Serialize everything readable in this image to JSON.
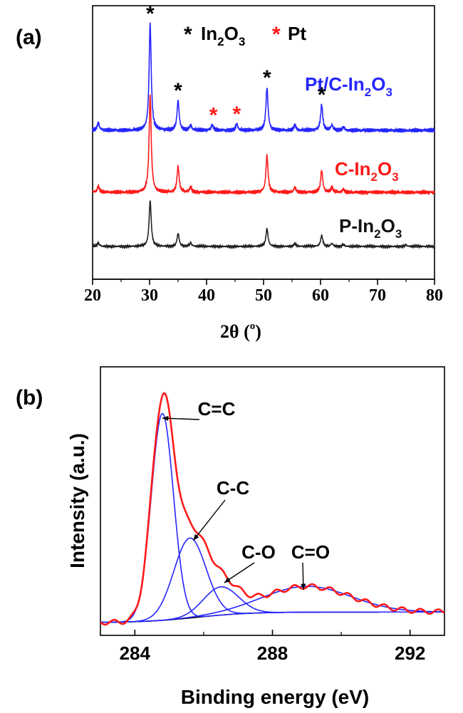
{
  "chart_data": [
    {
      "panel": "(a)",
      "type": "line",
      "xlabel": "2θ (°)",
      "xlabel_main": "2θ (",
      "xlabel_deg": "o",
      "xlabel_close": ")",
      "xlim": [
        20,
        80
      ],
      "xticks": [
        20,
        30,
        40,
        50,
        60,
        70,
        80
      ],
      "legend": [
        {
          "marker": "*",
          "color": "#000000",
          "label": "In",
          "sub": "2",
          "label2": "O",
          "sub2": "3"
        },
        {
          "marker": "*",
          "color": "#ff1a1a",
          "label": "Pt",
          "sub": "",
          "label2": "",
          "sub2": ""
        }
      ],
      "series": [
        {
          "name": "Pt/C-In2O3",
          "label": "Pt/C-In",
          "sub": "2",
          "label2": "O",
          "sub2": "3",
          "color": "#2626ff",
          "baseline": 0.0,
          "peaks": [
            {
              "x": 21.0,
              "h": 0.07
            },
            {
              "x": 30.1,
              "h": 1.0
            },
            {
              "x": 35.0,
              "h": 0.28
            },
            {
              "x": 37.2,
              "h": 0.05
            },
            {
              "x": 41.0,
              "h": 0.05
            },
            {
              "x": 45.3,
              "h": 0.06
            },
            {
              "x": 50.6,
              "h": 0.4
            },
            {
              "x": 55.5,
              "h": 0.05
            },
            {
              "x": 60.2,
              "h": 0.24
            },
            {
              "x": 62.0,
              "h": 0.05
            },
            {
              "x": 64.0,
              "h": 0.03
            }
          ],
          "markers": [
            {
              "x": 30.1,
              "color": "#000000"
            },
            {
              "x": 35.0,
              "color": "#000000"
            },
            {
              "x": 41.2,
              "color": "#ff1a1a"
            },
            {
              "x": 45.3,
              "color": "#ff1a1a"
            },
            {
              "x": 50.6,
              "color": "#000000"
            },
            {
              "x": 60.2,
              "color": "#000000"
            }
          ]
        },
        {
          "name": "C-In2O3",
          "label": "C-In",
          "sub": "2",
          "label2": "O",
          "sub2": "3",
          "color": "#ff1a1a",
          "baseline": 0.0,
          "peaks": [
            {
              "x": 21.0,
              "h": 0.06
            },
            {
              "x": 30.1,
              "h": 0.98
            },
            {
              "x": 35.0,
              "h": 0.26
            },
            {
              "x": 37.2,
              "h": 0.05
            },
            {
              "x": 50.6,
              "h": 0.37
            },
            {
              "x": 55.5,
              "h": 0.05
            },
            {
              "x": 60.2,
              "h": 0.22
            },
            {
              "x": 62.0,
              "h": 0.05
            },
            {
              "x": 64.0,
              "h": 0.03
            }
          ],
          "markers": []
        },
        {
          "name": "P-In2O3",
          "label": "P-In",
          "sub": "2",
          "label2": "O",
          "sub2": "3",
          "color": "#222222",
          "baseline": 0.0,
          "peaks": [
            {
              "x": 21.0,
              "h": 0.07
            },
            {
              "x": 30.1,
              "h": 0.92
            },
            {
              "x": 35.0,
              "h": 0.26
            },
            {
              "x": 37.2,
              "h": 0.07
            },
            {
              "x": 50.6,
              "h": 0.36
            },
            {
              "x": 55.5,
              "h": 0.06
            },
            {
              "x": 60.2,
              "h": 0.22
            },
            {
              "x": 62.0,
              "h": 0.06
            },
            {
              "x": 64.0,
              "h": 0.04
            },
            {
              "x": 75.0,
              "h": 0.03
            }
          ],
          "markers": []
        }
      ]
    },
    {
      "panel": "(b)",
      "type": "line",
      "xlabel": "Binding energy (eV)",
      "ylabel": "Intensity (a.u.)",
      "xlim": [
        283,
        293
      ],
      "ylim": [
        0,
        1.1
      ],
      "xticks": [
        284,
        288,
        292
      ],
      "components": [
        {
          "name": "C=C",
          "center": 284.8,
          "height": 0.88,
          "width": 0.38
        },
        {
          "name": "C-C",
          "center": 285.6,
          "height": 0.34,
          "width": 0.55
        },
        {
          "name": "C-O",
          "center": 286.5,
          "height": 0.12,
          "width": 0.6
        },
        {
          "name": "C=O",
          "center": 289.0,
          "height": 0.11,
          "width": 1.5
        }
      ],
      "component_color": "#2626ff",
      "envelope_color": "#ff1a1a",
      "background_color": "#000000",
      "annotations": [
        {
          "text": "C=C",
          "target_x": 284.8,
          "target_y": 0.9
        },
        {
          "text": "C-C",
          "target_x": 285.7,
          "target_y": 0.38
        },
        {
          "text": "C-O",
          "target_x": 286.6,
          "target_y": 0.2
        },
        {
          "text": "C=O",
          "target_x": 288.9,
          "target_y": 0.17
        }
      ]
    }
  ]
}
